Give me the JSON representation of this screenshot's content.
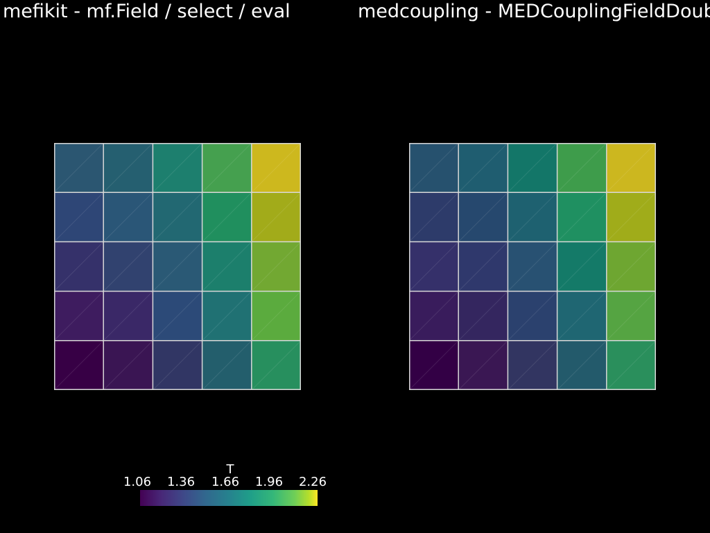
{
  "titles": {
    "left": "mefikit - mf.Field / select / eval",
    "right": "medcoupling - MEDCouplingFieldDouble"
  },
  "colorbar": {
    "title": "T",
    "ticks": [
      "1.06",
      "1.36",
      "1.66",
      "1.96",
      "2.26"
    ],
    "min": 1.06,
    "max": 2.26
  },
  "colors": {
    "background": "#000000",
    "grid_lines": "#d8d8d8"
  },
  "fields": {
    "left": {
      "grid": [
        [
          "#2b5671",
          "#255f70",
          "#1d7f6e",
          "#45a04f",
          "#cdb81e"
        ],
        [
          "#2e4676",
          "#2a5677",
          "#226872",
          "#208f5e",
          "#a2ab1a"
        ],
        [
          "#35316a",
          "#31426f",
          "#2a5975",
          "#1c7f6c",
          "#72a832"
        ],
        [
          "#3e1c5f",
          "#3a2867",
          "#2c4a78",
          "#207173",
          "#5bab3e"
        ],
        [
          "#370045",
          "#3a1553",
          "#313664",
          "#235e6c",
          "#278f5e"
        ]
      ]
    },
    "right": {
      "grid": [
        [
          "#26516e",
          "#1f5d70",
          "#137668",
          "#3e9c4b",
          "#ccb71f"
        ],
        [
          "#2d3b6a",
          "#26486e",
          "#1e6170",
          "#1f9061",
          "#a0ac1a"
        ],
        [
          "#35306a",
          "#2f386c",
          "#285172",
          "#147a68",
          "#6ea631"
        ],
        [
          "#391c5c",
          "#34265f",
          "#2b416e",
          "#1f6672",
          "#55a442"
        ],
        [
          "#330045",
          "#3a1753",
          "#323561",
          "#235a6b",
          "#2a8f5c"
        ]
      ]
    }
  }
}
